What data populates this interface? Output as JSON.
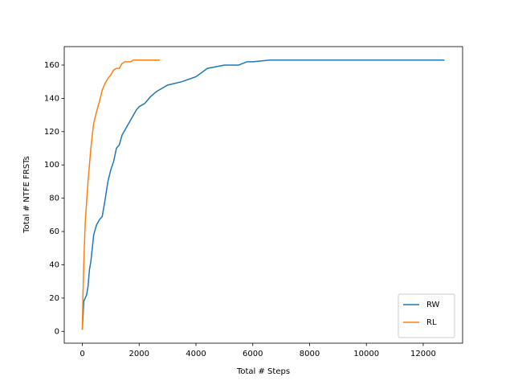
{
  "chart_data": {
    "type": "line",
    "xlabel": "Total # Steps",
    "ylabel": "Total # NTFE FRSTs",
    "xlim": [
      -637,
      13387
    ],
    "ylim": [
      -7.1,
      171.1
    ],
    "xticks": [
      0,
      2000,
      4000,
      6000,
      8000,
      10000,
      12000
    ],
    "yticks": [
      0,
      20,
      40,
      60,
      80,
      100,
      120,
      140,
      160
    ],
    "legend": "lower right",
    "series": [
      {
        "name": "RW",
        "color": "#1f77b4",
        "x": [
          0,
          50,
          100,
          150,
          200,
          250,
          300,
          350,
          400,
          500,
          600,
          700,
          800,
          900,
          1000,
          1100,
          1200,
          1300,
          1400,
          1500,
          1600,
          1700,
          1800,
          1900,
          2000,
          2200,
          2400,
          2600,
          2800,
          3000,
          3500,
          4000,
          4400,
          5000,
          5500,
          5800,
          6000,
          6600,
          12750
        ],
        "values": [
          1,
          18,
          20,
          22,
          27,
          37,
          42,
          50,
          58,
          64,
          67,
          69,
          79,
          90,
          97,
          102,
          110,
          112,
          118,
          121,
          124,
          127,
          130,
          133,
          135,
          137,
          141,
          144,
          146,
          148,
          150,
          153,
          158,
          160,
          160,
          162,
          162,
          163,
          163
        ]
      },
      {
        "name": "RL",
        "color": "#ff7f0e",
        "x": [
          0,
          20,
          50,
          80,
          100,
          150,
          200,
          250,
          300,
          350,
          400,
          500,
          600,
          700,
          800,
          900,
          1000,
          1100,
          1200,
          1300,
          1400,
          1500,
          1600,
          1700,
          1800,
          2000,
          2400,
          2730
        ],
        "values": [
          1,
          20,
          40,
          55,
          65,
          78,
          90,
          100,
          110,
          118,
          125,
          132,
          138,
          145,
          149,
          152,
          154,
          157,
          158,
          158,
          161,
          162,
          162,
          162,
          163,
          163,
          163,
          163
        ]
      }
    ]
  }
}
